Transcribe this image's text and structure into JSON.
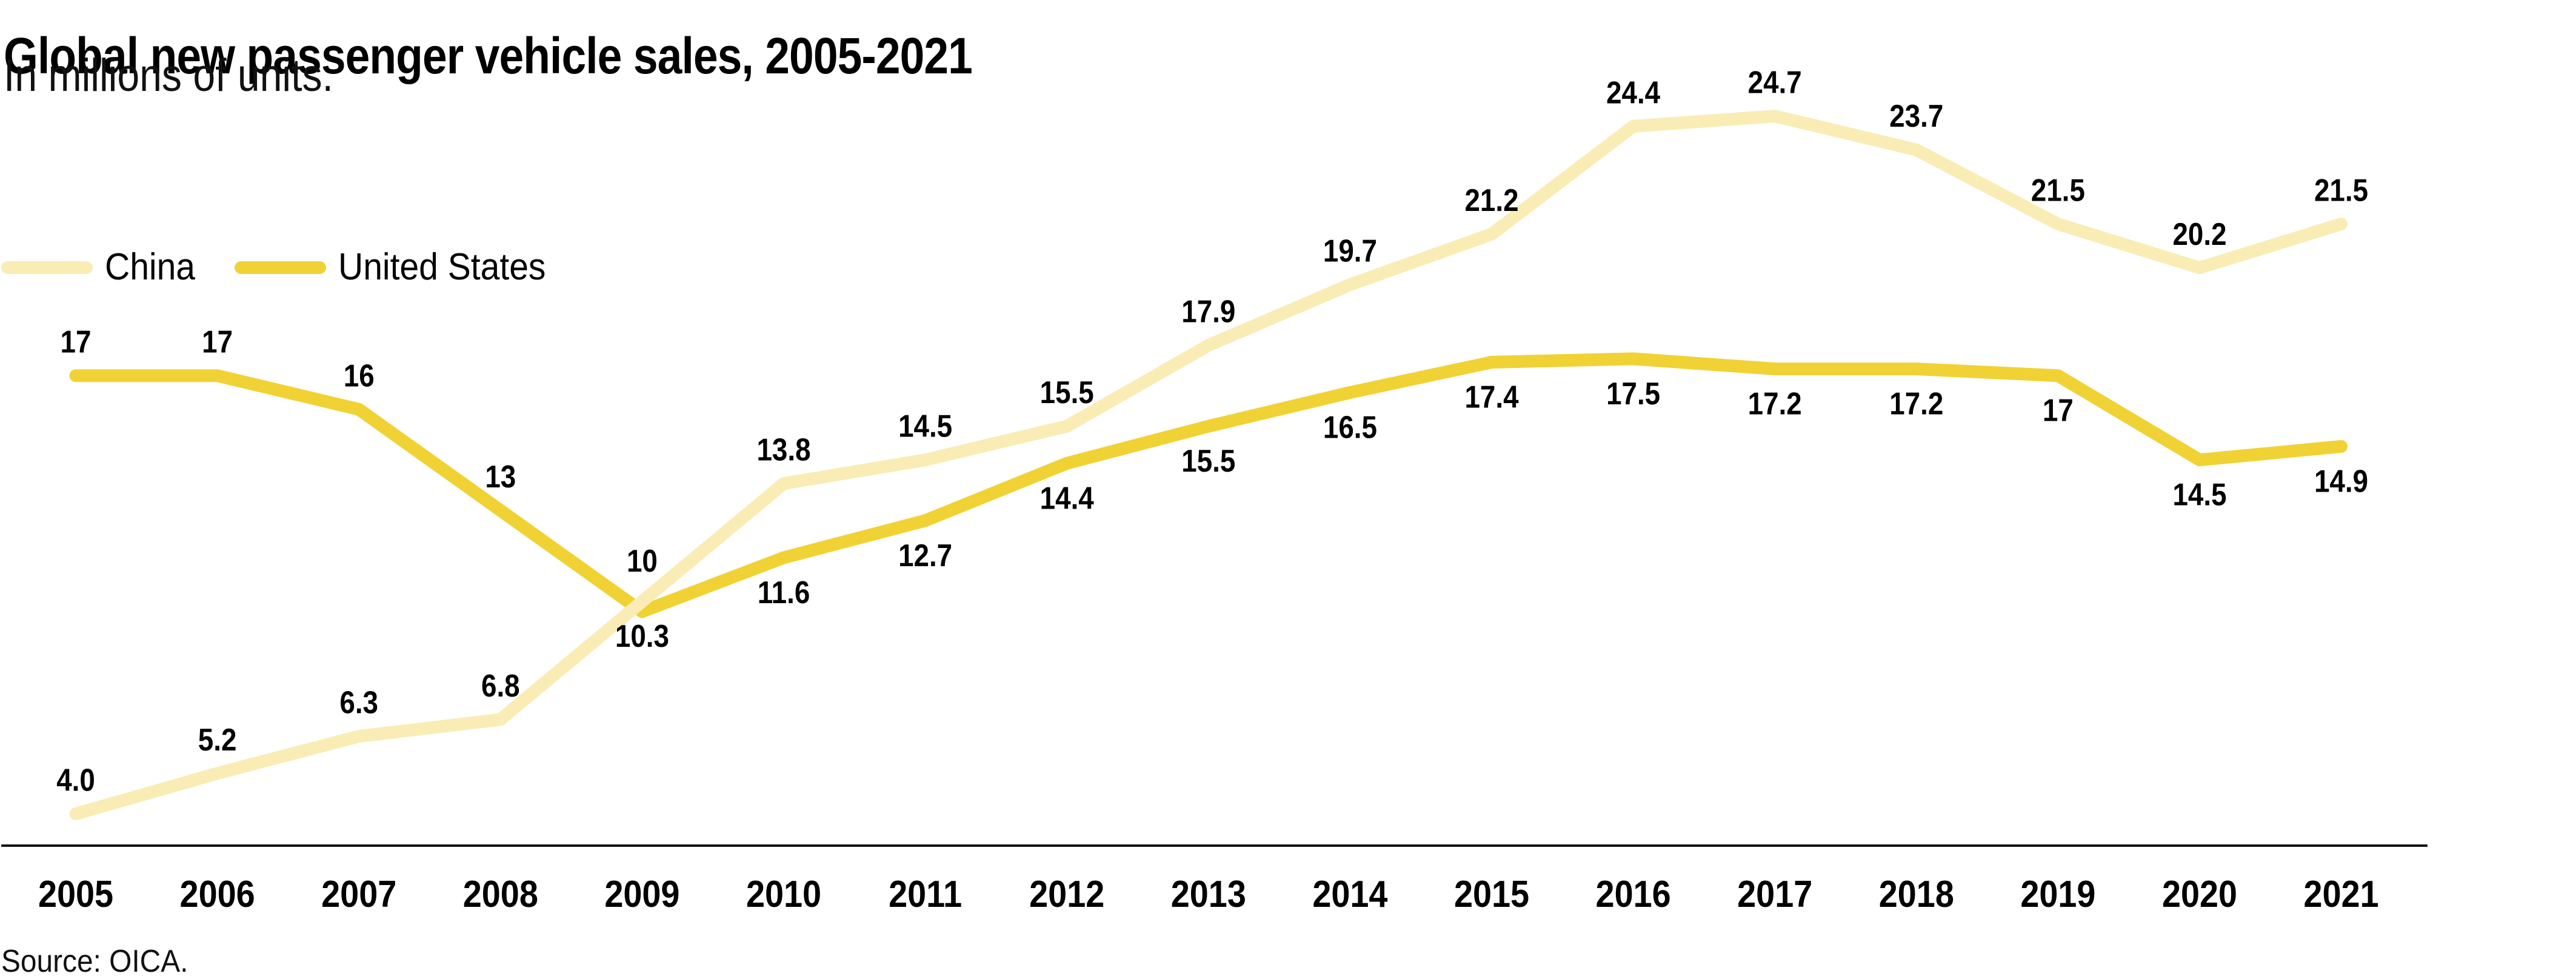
{
  "header": {
    "title": "Global new passenger vehicle sales, 2005-2021",
    "subtitle": "In millions of units."
  },
  "legend": {
    "items": [
      {
        "label": "China",
        "color": "#faecb5"
      },
      {
        "label": "United States",
        "color": "#f0d235"
      }
    ]
  },
  "footer": {
    "source": "Source: OICA."
  },
  "chart_data": {
    "type": "line",
    "title": "Global new passenger vehicle sales, 2005-2021",
    "subtitle": "In millions of units.",
    "xlabel": "",
    "ylabel": "Millions of units",
    "x_labels": [
      "2005",
      "2006",
      "2007",
      "2008",
      "2009",
      "2010",
      "2011",
      "2012",
      "2013",
      "2014",
      "2015",
      "2016",
      "2017",
      "2018",
      "2019",
      "2020",
      "2021"
    ],
    "ylim": [
      3,
      26.5
    ],
    "grid": false,
    "y_axis_shown": false,
    "legend_position": "top-left",
    "axis_color": "#111111",
    "label_color": "#000000",
    "series": [
      {
        "name": "China",
        "color": "#faecb5",
        "stroke_width": 21,
        "z": 2,
        "points": [
          {
            "x": 2005,
            "v": 4.0,
            "label": "4.0",
            "pos": "above"
          },
          {
            "x": 2006,
            "v": 5.2,
            "label": "5.2",
            "pos": "above"
          },
          {
            "x": 2007,
            "v": 6.3,
            "label": "6.3",
            "pos": "above"
          },
          {
            "x": 2008,
            "v": 6.8,
            "label": "6.8",
            "pos": "above"
          },
          {
            "x": 2009,
            "v": 10.3,
            "label": "10.3",
            "pos": "below"
          },
          {
            "x": 2010,
            "v": 13.8,
            "label": "13.8",
            "pos": "above"
          },
          {
            "x": 2011,
            "v": 14.5,
            "label": "14.5",
            "pos": "above"
          },
          {
            "x": 2012,
            "v": 15.5,
            "label": "15.5",
            "pos": "above"
          },
          {
            "x": 2013,
            "v": 17.9,
            "label": "17.9",
            "pos": "above"
          },
          {
            "x": 2014,
            "v": 19.7,
            "label": "19.7",
            "pos": "above"
          },
          {
            "x": 2015,
            "v": 21.2,
            "label": "21.2",
            "pos": "above"
          },
          {
            "x": 2016,
            "v": 24.4,
            "label": "24.4",
            "pos": "above"
          },
          {
            "x": 2017,
            "v": 24.7,
            "label": "24.7",
            "pos": "above"
          },
          {
            "x": 2018,
            "v": 23.7,
            "label": "23.7",
            "pos": "above"
          },
          {
            "x": 2019,
            "v": 21.5,
            "label": "21.5",
            "pos": "above"
          },
          {
            "x": 2020,
            "v": 20.2,
            "label": "20.2",
            "pos": "above"
          },
          {
            "x": 2021,
            "v": 21.5,
            "label": "21.5",
            "pos": "above"
          }
        ]
      },
      {
        "name": "United States",
        "color": "#f0d235",
        "stroke_width": 21,
        "z": 1,
        "points": [
          {
            "x": 2005,
            "v": 17,
            "label": "17",
            "pos": "above"
          },
          {
            "x": 2006,
            "v": 17,
            "label": "17",
            "pos": "above"
          },
          {
            "x": 2007,
            "v": 16,
            "label": "16",
            "pos": "above"
          },
          {
            "x": 2008,
            "v": 13,
            "label": "13",
            "pos": "above"
          },
          {
            "x": 2009,
            "v": 10,
            "label": "10",
            "pos": "above",
            "dy": -28
          },
          {
            "x": 2010,
            "v": 11.6,
            "label": "11.6",
            "pos": "below"
          },
          {
            "x": 2011,
            "v": 12.7,
            "label": "12.7",
            "pos": "below"
          },
          {
            "x": 2012,
            "v": 14.4,
            "label": "14.4",
            "pos": "below"
          },
          {
            "x": 2013,
            "v": 15.5,
            "label": "15.5",
            "pos": "below"
          },
          {
            "x": 2014,
            "v": 16.5,
            "label": "16.5",
            "pos": "below"
          },
          {
            "x": 2015,
            "v": 17.4,
            "label": "17.4",
            "pos": "below"
          },
          {
            "x": 2016,
            "v": 17.5,
            "label": "17.5",
            "pos": "below"
          },
          {
            "x": 2017,
            "v": 17.2,
            "label": "17.2",
            "pos": "below"
          },
          {
            "x": 2018,
            "v": 17.2,
            "label": "17.2",
            "pos": "below"
          },
          {
            "x": 2019,
            "v": 17,
            "label": "17",
            "pos": "below"
          },
          {
            "x": 2020,
            "v": 14.5,
            "label": "14.5",
            "pos": "below"
          },
          {
            "x": 2021,
            "v": 14.9,
            "label": "14.9",
            "pos": "below"
          }
        ]
      }
    ]
  }
}
